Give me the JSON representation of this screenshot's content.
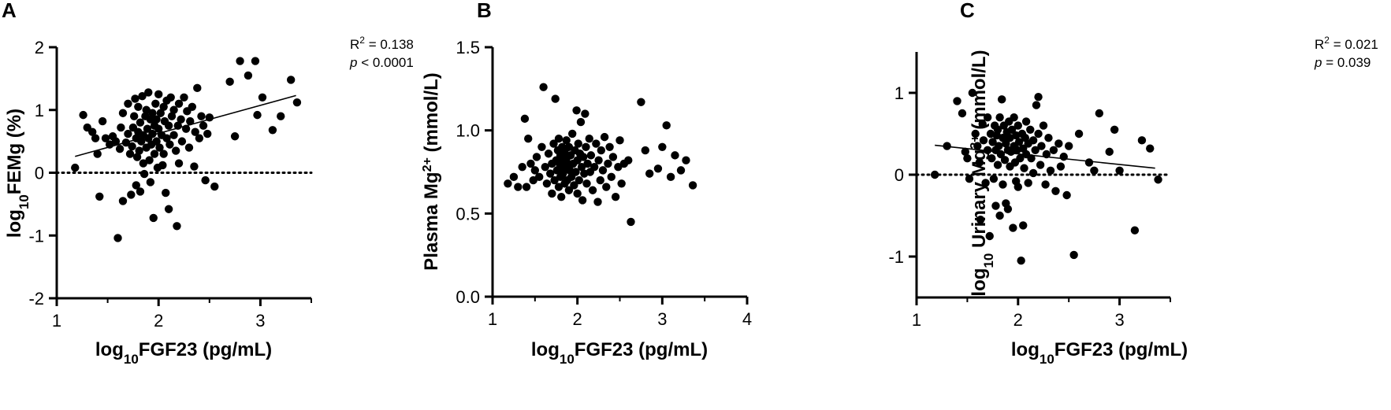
{
  "chart_data": [
    {
      "panel": "A",
      "type": "scatter",
      "xlabel": "log10FGF23 (pg/mL)",
      "ylabel": "log10FEMg (%)",
      "xlim": [
        1,
        3.5
      ],
      "ylim": [
        -2,
        2
      ],
      "xticks": [
        1,
        2,
        3
      ],
      "yticks": [
        -2,
        -1,
        0,
        1,
        2
      ],
      "zero_line": "dotted",
      "regression": {
        "x": [
          1.18,
          3.35
        ],
        "y": [
          0.26,
          1.23
        ]
      },
      "stats": {
        "r2": "R² = 0.138",
        "p": "p < 0.0001"
      },
      "points": [
        [
          1.18,
          0.08
        ],
        [
          1.26,
          0.92
        ],
        [
          1.3,
          0.72
        ],
        [
          1.35,
          0.65
        ],
        [
          1.38,
          0.55
        ],
        [
          1.4,
          0.3
        ],
        [
          1.42,
          -0.38
        ],
        [
          1.45,
          0.82
        ],
        [
          1.48,
          0.55
        ],
        [
          1.52,
          0.45
        ],
        [
          1.55,
          0.58
        ],
        [
          1.58,
          0.5
        ],
        [
          1.6,
          -1.04
        ],
        [
          1.62,
          0.38
        ],
        [
          1.63,
          0.72
        ],
        [
          1.65,
          0.95
        ],
        [
          1.65,
          -0.45
        ],
        [
          1.68,
          0.48
        ],
        [
          1.7,
          0.62
        ],
        [
          1.7,
          1.1
        ],
        [
          1.72,
          0.3
        ],
        [
          1.73,
          -0.35
        ],
        [
          1.74,
          0.42
        ],
        [
          1.75,
          0.72
        ],
        [
          1.76,
          0.9
        ],
        [
          1.77,
          1.18
        ],
        [
          1.78,
          0.55
        ],
        [
          1.78,
          -0.2
        ],
        [
          1.79,
          0.25
        ],
        [
          1.8,
          0.65
        ],
        [
          1.8,
          1.05
        ],
        [
          1.81,
          0.35
        ],
        [
          1.82,
          0.8
        ],
        [
          1.82,
          -0.3
        ],
        [
          1.83,
          0.5
        ],
        [
          1.84,
          1.22
        ],
        [
          1.85,
          0.15
        ],
        [
          1.85,
          0.6
        ],
        [
          1.86,
          -0.02
        ],
        [
          1.87,
          0.9
        ],
        [
          1.88,
          0.4
        ],
        [
          1.88,
          1.0
        ],
        [
          1.89,
          0.7
        ],
        [
          1.9,
          0.55
        ],
        [
          1.9,
          1.28
        ],
        [
          1.91,
          0.2
        ],
        [
          1.92,
          0.85
        ],
        [
          1.92,
          -0.15
        ],
        [
          1.93,
          0.45
        ],
        [
          1.94,
          0.95
        ],
        [
          1.94,
          0.62
        ],
        [
          1.95,
          -0.72
        ],
        [
          1.96,
          0.75
        ],
        [
          1.96,
          0.3
        ],
        [
          1.97,
          1.1
        ],
        [
          1.98,
          0.5
        ],
        [
          1.98,
          0.85
        ],
        [
          1.99,
          0.08
        ],
        [
          2.0,
          0.7
        ],
        [
          2.0,
          1.25
        ],
        [
          2.01,
          0.4
        ],
        [
          2.02,
          0.95
        ],
        [
          2.03,
          0.6
        ],
        [
          2.04,
          0.12
        ],
        [
          2.05,
          1.05
        ],
        [
          2.05,
          0.3
        ],
        [
          2.06,
          0.82
        ],
        [
          2.07,
          -0.32
        ],
        [
          2.08,
          0.55
        ],
        [
          2.08,
          1.15
        ],
        [
          2.1,
          0.75
        ],
        [
          2.1,
          -0.58
        ],
        [
          2.11,
          0.45
        ],
        [
          2.12,
          1.2
        ],
        [
          2.13,
          0.9
        ],
        [
          2.15,
          0.6
        ],
        [
          2.15,
          1.0
        ],
        [
          2.17,
          0.35
        ],
        [
          2.18,
          -0.85
        ],
        [
          2.19,
          0.75
        ],
        [
          2.2,
          1.1
        ],
        [
          2.2,
          0.15
        ],
        [
          2.22,
          0.85
        ],
        [
          2.23,
          0.5
        ],
        [
          2.25,
          1.2
        ],
        [
          2.27,
          0.7
        ],
        [
          2.28,
          0.98
        ],
        [
          2.3,
          0.4
        ],
        [
          2.31,
          0.82
        ],
        [
          2.33,
          1.05
        ],
        [
          2.35,
          0.1
        ],
        [
          2.36,
          0.65
        ],
        [
          2.38,
          1.35
        ],
        [
          2.4,
          0.55
        ],
        [
          2.42,
          0.9
        ],
        [
          2.44,
          0.75
        ],
        [
          2.46,
          -0.12
        ],
        [
          2.48,
          0.62
        ],
        [
          2.5,
          0.88
        ],
        [
          2.55,
          -0.22
        ],
        [
          2.7,
          1.45
        ],
        [
          2.75,
          0.58
        ],
        [
          2.8,
          1.78
        ],
        [
          2.88,
          1.55
        ],
        [
          2.95,
          1.78
        ],
        [
          2.97,
          0.92
        ],
        [
          3.02,
          1.2
        ],
        [
          3.12,
          0.68
        ],
        [
          3.2,
          0.9
        ],
        [
          3.3,
          1.48
        ],
        [
          3.36,
          1.12
        ]
      ]
    },
    {
      "panel": "B",
      "type": "scatter",
      "xlabel": "log10FGF23 (pg/mL)",
      "ylabel": "Plasma Mg2+ (mmol/L)",
      "xlim": [
        1,
        4
      ],
      "ylim": [
        0,
        1.5
      ],
      "xticks": [
        1,
        2,
        3,
        4
      ],
      "yticks": [
        0.0,
        0.5,
        1.0,
        1.5
      ],
      "points": [
        [
          1.18,
          0.68
        ],
        [
          1.25,
          0.72
        ],
        [
          1.3,
          0.66
        ],
        [
          1.35,
          0.78
        ],
        [
          1.38,
          1.07
        ],
        [
          1.4,
          0.66
        ],
        [
          1.42,
          0.95
        ],
        [
          1.45,
          0.8
        ],
        [
          1.48,
          0.7
        ],
        [
          1.5,
          0.76
        ],
        [
          1.52,
          0.84
        ],
        [
          1.55,
          0.72
        ],
        [
          1.58,
          0.9
        ],
        [
          1.6,
          1.26
        ],
        [
          1.62,
          0.78
        ],
        [
          1.64,
          0.68
        ],
        [
          1.66,
          0.86
        ],
        [
          1.68,
          0.74
        ],
        [
          1.7,
          0.8
        ],
        [
          1.7,
          0.62
        ],
        [
          1.72,
          0.92
        ],
        [
          1.73,
          0.7
        ],
        [
          1.74,
          1.19
        ],
        [
          1.75,
          0.82
        ],
        [
          1.76,
          0.76
        ],
        [
          1.77,
          0.88
        ],
        [
          1.78,
          0.66
        ],
        [
          1.78,
          0.95
        ],
        [
          1.79,
          0.8
        ],
        [
          1.8,
          0.72
        ],
        [
          1.8,
          0.85
        ],
        [
          1.81,
          0.6
        ],
        [
          1.82,
          0.78
        ],
        [
          1.82,
          0.9
        ],
        [
          1.83,
          0.74
        ],
        [
          1.84,
          0.82
        ],
        [
          1.85,
          0.68
        ],
        [
          1.85,
          0.88
        ],
        [
          1.86,
          0.77
        ],
        [
          1.87,
          0.94
        ],
        [
          1.88,
          0.7
        ],
        [
          1.88,
          0.84
        ],
        [
          1.89,
          0.8
        ],
        [
          1.9,
          0.64
        ],
        [
          1.9,
          0.9
        ],
        [
          1.91,
          0.76
        ],
        [
          1.92,
          0.85
        ],
        [
          1.93,
          0.72
        ],
        [
          1.94,
          0.98
        ],
        [
          1.95,
          0.8
        ],
        [
          1.96,
          0.67
        ],
        [
          1.97,
          0.88
        ],
        [
          1.98,
          0.75
        ],
        [
          1.99,
          1.12
        ],
        [
          2.0,
          0.82
        ],
        [
          2.0,
          0.62
        ],
        [
          2.01,
          0.92
        ],
        [
          2.02,
          0.7
        ],
        [
          2.03,
          0.86
        ],
        [
          2.04,
          1.05
        ],
        [
          2.05,
          0.78
        ],
        [
          2.06,
          0.58
        ],
        [
          2.07,
          0.84
        ],
        [
          2.08,
          0.74
        ],
        [
          2.09,
          1.1
        ],
        [
          2.1,
          0.9
        ],
        [
          2.11,
          0.68
        ],
        [
          2.12,
          0.8
        ],
        [
          2.14,
          0.95
        ],
        [
          2.15,
          0.75
        ],
        [
          2.16,
          0.85
        ],
        [
          2.18,
          0.64
        ],
        [
          2.2,
          0.78
        ],
        [
          2.22,
          0.92
        ],
        [
          2.24,
          0.57
        ],
        [
          2.25,
          0.82
        ],
        [
          2.27,
          0.7
        ],
        [
          2.28,
          0.88
        ],
        [
          2.3,
          0.76
        ],
        [
          2.32,
          0.96
        ],
        [
          2.34,
          0.66
        ],
        [
          2.36,
          0.8
        ],
        [
          2.38,
          0.9
        ],
        [
          2.4,
          0.72
        ],
        [
          2.42,
          0.84
        ],
        [
          2.45,
          0.6
        ],
        [
          2.48,
          0.78
        ],
        [
          2.5,
          0.94
        ],
        [
          2.52,
          0.68
        ],
        [
          2.55,
          0.8
        ],
        [
          2.6,
          0.82
        ],
        [
          2.63,
          0.45
        ],
        [
          2.75,
          1.17
        ],
        [
          2.8,
          0.88
        ],
        [
          2.85,
          0.74
        ],
        [
          2.95,
          0.77
        ],
        [
          3.0,
          0.9
        ],
        [
          3.05,
          1.03
        ],
        [
          3.1,
          0.72
        ],
        [
          3.15,
          0.85
        ],
        [
          3.22,
          0.76
        ],
        [
          3.28,
          0.82
        ],
        [
          3.36,
          0.67
        ]
      ]
    },
    {
      "panel": "C",
      "type": "scatter",
      "xlabel": "log10FGF23 (pg/mL)",
      "ylabel": "log10 Urinary Mg2+ (mmol/L)",
      "xlim": [
        1,
        3.5
      ],
      "ylim": [
        -1.5,
        1.5
      ],
      "xticks": [
        1,
        2,
        3
      ],
      "yticks": [
        -1,
        0,
        1
      ],
      "zero_line": "dotted",
      "regression": {
        "x": [
          1.18,
          3.35
        ],
        "y": [
          0.36,
          0.08
        ]
      },
      "stats": {
        "r2": "R² = 0.021",
        "p": "p = 0.039"
      },
      "points": [
        [
          1.18,
          0.0
        ],
        [
          1.3,
          0.35
        ],
        [
          1.4,
          0.9
        ],
        [
          1.45,
          0.75
        ],
        [
          1.48,
          0.28
        ],
        [
          1.5,
          0.2
        ],
        [
          1.52,
          -0.05
        ],
        [
          1.55,
          1.0
        ],
        [
          1.58,
          0.5
        ],
        [
          1.6,
          0.35
        ],
        [
          1.62,
          0.15
        ],
        [
          1.63,
          -0.55
        ],
        [
          1.65,
          0.62
        ],
        [
          1.66,
          0.42
        ],
        [
          1.68,
          -0.1
        ],
        [
          1.7,
          0.3
        ],
        [
          1.7,
          0.7
        ],
        [
          1.72,
          -0.75
        ],
        [
          1.73,
          0.5
        ],
        [
          1.74,
          0.2
        ],
        [
          1.75,
          0.4
        ],
        [
          1.76,
          -0.05
        ],
        [
          1.77,
          0.6
        ],
        [
          1.78,
          0.3
        ],
        [
          1.78,
          -0.38
        ],
        [
          1.79,
          0.48
        ],
        [
          1.8,
          0.12
        ],
        [
          1.8,
          0.55
        ],
        [
          1.81,
          0.35
        ],
        [
          1.82,
          -0.5
        ],
        [
          1.82,
          0.7
        ],
        [
          1.83,
          0.25
        ],
        [
          1.84,
          0.92
        ],
        [
          1.85,
          0.45
        ],
        [
          1.85,
          -0.12
        ],
        [
          1.86,
          0.6
        ],
        [
          1.87,
          0.18
        ],
        [
          1.88,
          0.38
        ],
        [
          1.88,
          -0.35
        ],
        [
          1.89,
          0.52
        ],
        [
          1.9,
          0.3
        ],
        [
          1.9,
          -0.42
        ],
        [
          1.91,
          0.65
        ],
        [
          1.92,
          0.1
        ],
        [
          1.92,
          0.45
        ],
        [
          1.93,
          0.28
        ],
        [
          1.94,
          0.55
        ],
        [
          1.95,
          -0.65
        ],
        [
          1.96,
          0.35
        ],
        [
          1.96,
          0.7
        ],
        [
          1.97,
          0.15
        ],
        [
          1.98,
          0.48
        ],
        [
          1.98,
          -0.08
        ],
        [
          1.99,
          0.3
        ],
        [
          2.0,
          0.6
        ],
        [
          2.0,
          -0.15
        ],
        [
          2.01,
          0.4
        ],
        [
          2.02,
          0.2
        ],
        [
          2.03,
          -1.05
        ],
        [
          2.04,
          0.5
        ],
        [
          2.05,
          0.32
        ],
        [
          2.05,
          -0.62
        ],
        [
          2.06,
          0.08
        ],
        [
          2.07,
          0.45
        ],
        [
          2.08,
          0.25
        ],
        [
          2.08,
          0.65
        ],
        [
          2.1,
          0.38
        ],
        [
          2.1,
          -0.1
        ],
        [
          2.12,
          0.55
        ],
        [
          2.13,
          0.2
        ],
        [
          2.15,
          0.42
        ],
        [
          2.15,
          0.02
        ],
        [
          2.17,
          0.3
        ],
        [
          2.18,
          0.85
        ],
        [
          2.2,
          0.5
        ],
        [
          2.2,
          0.95
        ],
        [
          2.22,
          0.12
        ],
        [
          2.23,
          0.35
        ],
        [
          2.25,
          0.6
        ],
        [
          2.27,
          -0.12
        ],
        [
          2.28,
          0.25
        ],
        [
          2.3,
          0.45
        ],
        [
          2.32,
          0.05
        ],
        [
          2.35,
          0.3
        ],
        [
          2.37,
          -0.2
        ],
        [
          2.4,
          0.38
        ],
        [
          2.42,
          0.1
        ],
        [
          2.45,
          0.22
        ],
        [
          2.48,
          -0.25
        ],
        [
          2.5,
          0.35
        ],
        [
          2.55,
          -0.98
        ],
        [
          2.6,
          0.5
        ],
        [
          2.7,
          0.15
        ],
        [
          2.75,
          0.05
        ],
        [
          2.8,
          0.75
        ],
        [
          2.9,
          0.28
        ],
        [
          2.95,
          0.55
        ],
        [
          3.0,
          0.05
        ],
        [
          3.15,
          -0.68
        ],
        [
          3.22,
          0.42
        ],
        [
          3.3,
          0.32
        ],
        [
          3.38,
          -0.06
        ]
      ]
    }
  ]
}
